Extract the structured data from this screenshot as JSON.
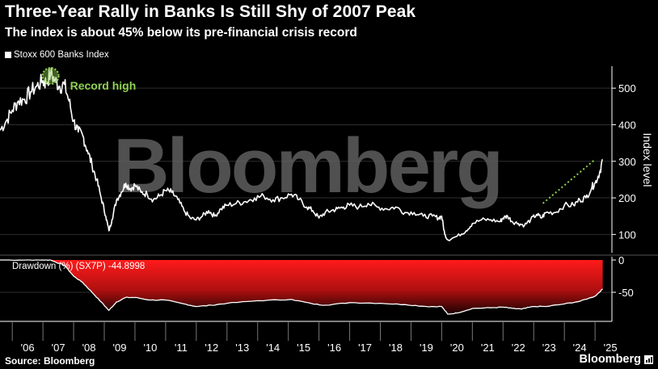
{
  "header": {
    "title": "Three-Year Rally in Banks Is Still Shy of 2007 Peak",
    "subtitle": "The index is about 45% below its pre-financial crisis record"
  },
  "footer": {
    "source": "Source: Bloomberg",
    "brand": "Bloomberg"
  },
  "watermark": "Bloomberg",
  "colors": {
    "line": "#ffffff",
    "annotation": "#8fd14f",
    "drawdown_top": "#ff1a1a",
    "background": "#000000"
  },
  "chart_data": [
    {
      "type": "line",
      "series": [
        {
          "name": "Stoxx 600 Banks Index",
          "x": [
            2005.6,
            2005.8,
            2006.0,
            2006.2,
            2006.4,
            2006.6,
            2006.8,
            2007.0,
            2007.1,
            2007.25,
            2007.4,
            2007.55,
            2007.7,
            2007.85,
            2008.0,
            2008.15,
            2008.3,
            2008.45,
            2008.6,
            2008.75,
            2008.9,
            2009.05,
            2009.15,
            2009.25,
            2009.4,
            2009.55,
            2009.7,
            2009.85,
            2010.0,
            2010.2,
            2010.4,
            2010.6,
            2010.8,
            2011.0,
            2011.2,
            2011.4,
            2011.6,
            2011.8,
            2012.0,
            2012.2,
            2012.4,
            2012.6,
            2012.8,
            2013.0,
            2013.3,
            2013.6,
            2013.9,
            2014.2,
            2014.5,
            2014.8,
            2015.1,
            2015.35,
            2015.6,
            2015.8,
            2016.0,
            2016.2,
            2016.4,
            2016.6,
            2016.8,
            2017.0,
            2017.3,
            2017.6,
            2017.9,
            2018.2,
            2018.5,
            2018.8,
            2019.1,
            2019.4,
            2019.7,
            2019.9,
            2020.0,
            2020.1,
            2020.2,
            2020.5,
            2020.8,
            2021.0,
            2021.3,
            2021.6,
            2021.9,
            2022.0,
            2022.15,
            2022.3,
            2022.5,
            2022.7,
            2022.9,
            2023.1,
            2023.25,
            2023.4,
            2023.7,
            2024.0,
            2024.3,
            2024.5,
            2024.7,
            2024.9,
            2025.0,
            2025.15,
            2025.25
          ],
          "values": [
            385,
            410,
            440,
            465,
            470,
            490,
            505,
            520,
            515,
            540,
            520,
            505,
            510,
            465,
            410,
            380,
            370,
            330,
            290,
            250,
            200,
            150,
            110,
            140,
            195,
            215,
            240,
            225,
            235,
            215,
            210,
            195,
            205,
            220,
            215,
            195,
            165,
            145,
            140,
            150,
            165,
            150,
            170,
            180,
            185,
            190,
            200,
            205,
            195,
            200,
            210,
            195,
            175,
            165,
            145,
            160,
            165,
            170,
            175,
            180,
            175,
            185,
            175,
            170,
            175,
            160,
            160,
            150,
            150,
            145,
            150,
            100,
            85,
            95,
            110,
            130,
            140,
            140,
            135,
            145,
            150,
            135,
            130,
            125,
            140,
            155,
            145,
            160,
            160,
            180,
            180,
            195,
            200,
            230,
            240,
            270,
            305
          ]
        }
      ],
      "ylabel": "Index level",
      "yticks": [
        100,
        200,
        300,
        400,
        500
      ],
      "ylim": [
        50,
        560
      ],
      "xlim": [
        2005.6,
        2025.55
      ],
      "annotations": [
        {
          "text": "Record high",
          "x": 2007.25,
          "y": 540
        },
        {
          "text": "",
          "x": [
            2023.3,
            2025.0
          ],
          "y": [
            185,
            305
          ],
          "style": "dotted-trend"
        }
      ]
    },
    {
      "type": "area",
      "series": [
        {
          "name": "Drawdown (%) (SX7P) -44.8998",
          "x": [
            2005.6,
            2006.5,
            2007.0,
            2007.25,
            2007.4,
            2007.7,
            2008.0,
            2008.3,
            2008.6,
            2008.9,
            2009.15,
            2009.4,
            2009.7,
            2010.0,
            2010.5,
            2011.0,
            2011.6,
            2012.0,
            2012.5,
            2013.0,
            2014.0,
            2015.1,
            2015.8,
            2016.2,
            2017.0,
            2018.0,
            2018.8,
            2019.5,
            2020.0,
            2020.2,
            2020.5,
            2021.0,
            2021.6,
            2022.0,
            2022.3,
            2022.6,
            2023.0,
            2023.4,
            2024.0,
            2024.5,
            2025.0,
            2025.25
          ],
          "values": [
            0,
            0,
            0,
            0,
            -3,
            -8,
            -25,
            -35,
            -50,
            -65,
            -78,
            -65,
            -58,
            -58,
            -62,
            -62,
            -68,
            -72,
            -70,
            -67,
            -63,
            -61,
            -68,
            -70,
            -66,
            -67,
            -69,
            -72,
            -72,
            -84,
            -82,
            -75,
            -74,
            -73,
            -75,
            -76,
            -72,
            -72,
            -68,
            -64,
            -56,
            -44.9
          ]
        }
      ],
      "yticks": [
        0,
        -50
      ],
      "ylim": [
        -95,
        5
      ],
      "xticks": [
        "'06",
        "'07",
        "'08",
        "'09",
        "'10",
        "'11",
        "'12",
        "'13",
        "'14",
        "'15",
        "'16",
        "'17",
        "'18",
        "'19",
        "'20",
        "'21",
        "'22",
        "'23",
        "'24",
        "'25"
      ]
    }
  ]
}
